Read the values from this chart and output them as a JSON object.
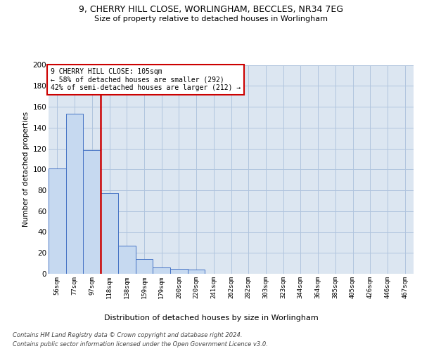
{
  "title_line1": "9, CHERRY HILL CLOSE, WORLINGHAM, BECCLES, NR34 7EG",
  "title_line2": "Size of property relative to detached houses in Worlingham",
  "categories": [
    "56sqm",
    "77sqm",
    "97sqm",
    "118sqm",
    "138sqm",
    "159sqm",
    "179sqm",
    "200sqm",
    "220sqm",
    "241sqm",
    "262sqm",
    "282sqm",
    "303sqm",
    "323sqm",
    "344sqm",
    "364sqm",
    "385sqm",
    "405sqm",
    "426sqm",
    "446sqm",
    "467sqm"
  ],
  "values": [
    101,
    153,
    118,
    77,
    27,
    14,
    6,
    5,
    4,
    0,
    0,
    0,
    0,
    0,
    0,
    0,
    0,
    0,
    0,
    0,
    0
  ],
  "bar_color": "#c6d9f0",
  "bar_edge_color": "#4472c4",
  "grid_color": "#b0c4de",
  "axes_bg_color": "#dce6f1",
  "ylabel": "Number of detached properties",
  "xlabel": "Distribution of detached houses by size in Worlingham",
  "annotation_line1": "9 CHERRY HILL CLOSE: 105sqm",
  "annotation_line2": "← 58% of detached houses are smaller (292)",
  "annotation_line3": "42% of semi-detached houses are larger (212) →",
  "vline_color": "#cc0000",
  "annotation_box_color": "#ffffff",
  "annotation_box_edge_color": "#cc0000",
  "footer_line1": "Contains HM Land Registry data © Crown copyright and database right 2024.",
  "footer_line2": "Contains public sector information licensed under the Open Government Licence v3.0.",
  "ylim": [
    0,
    200
  ],
  "yticks": [
    0,
    20,
    40,
    60,
    80,
    100,
    120,
    140,
    160,
    180,
    200
  ]
}
